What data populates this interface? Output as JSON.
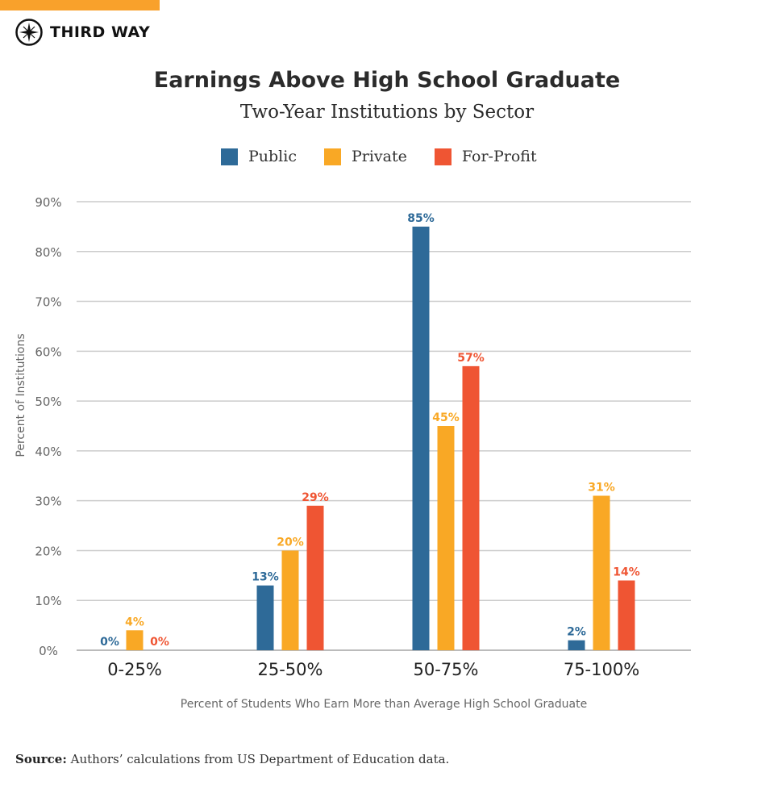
{
  "brand": {
    "name": "THIRD WAY",
    "accent": "#f9a12b"
  },
  "chart_data": {
    "type": "bar",
    "title": "Earnings Above High School Graduate",
    "subtitle": "Two-Year Institutions by Sector",
    "xlabel": "Percent of Students Who Earn More than Average High School Graduate",
    "ylabel": "Percent of Institutions",
    "categories": [
      "0-25%",
      "25-50%",
      "50-75%",
      "75-100%"
    ],
    "ylim": [
      0,
      90
    ],
    "yticks": [
      "0%",
      "10%",
      "20%",
      "30%",
      "40%",
      "50%",
      "60%",
      "70%",
      "80%",
      "90%"
    ],
    "grid": true,
    "legend_position": "top",
    "series": [
      {
        "name": "Public",
        "color": "#2e6a98",
        "values": [
          0,
          13,
          85,
          2
        ],
        "labels": [
          "0%",
          "13%",
          "85%",
          "2%"
        ]
      },
      {
        "name": "Private",
        "color": "#f9a825",
        "values": [
          4,
          20,
          45,
          31
        ],
        "labels": [
          "4%",
          "20%",
          "45%",
          "31%"
        ]
      },
      {
        "name": "For-Profit",
        "color": "#ef5533",
        "values": [
          0,
          29,
          57,
          14
        ],
        "labels": [
          "0%",
          "29%",
          "57%",
          "14%"
        ]
      }
    ]
  },
  "source": {
    "label": "Source:",
    "text": "Authors’ calculations from US Department of Education data."
  }
}
